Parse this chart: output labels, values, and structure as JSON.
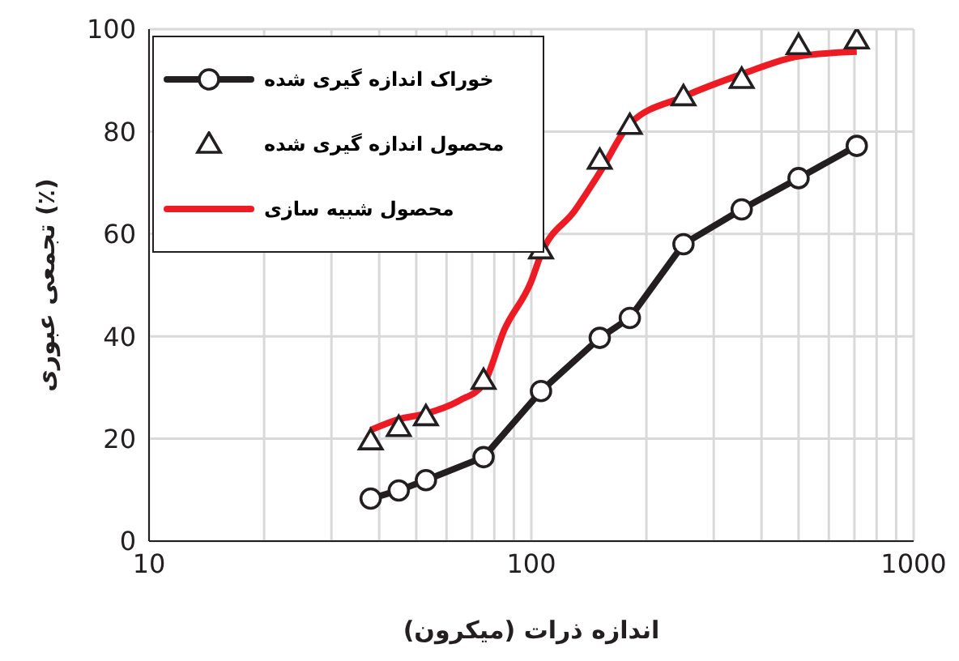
{
  "chart_data": {
    "type": "line",
    "xlabel": "اندازه ذرات (میکرون)",
    "ylabel": "تجمعی عبوری (٪)",
    "log": "x",
    "grid": true,
    "legend": "top left",
    "xlim": [
      10,
      1000
    ],
    "xticks": [
      10,
      {
        "value": 20,
        "label": null
      },
      {
        "value": 30,
        "label": null
      },
      {
        "value": 40,
        "label": null
      },
      {
        "value": 50,
        "label": null
      },
      {
        "value": 60,
        "label": null
      },
      {
        "value": 70,
        "label": null
      },
      {
        "value": 80,
        "label": null
      },
      {
        "value": 90,
        "label": null
      },
      100,
      {
        "value": 200,
        "label": null
      },
      {
        "value": 300,
        "label": null
      },
      {
        "value": 400,
        "label": null
      },
      {
        "value": 500,
        "label": null
      },
      {
        "value": 600,
        "label": null
      },
      {
        "value": 700,
        "label": null
      },
      {
        "value": 800,
        "label": null
      },
      {
        "value": 900,
        "label": null
      },
      1000
    ],
    "ylim": [
      0,
      100
    ],
    "yticks": [
      0,
      20,
      40,
      60,
      80,
      100
    ],
    "series": [
      {
        "name": "خوراک اندازه گیری شده",
        "color": "#231f20",
        "marker": "circle",
        "x": [
          38,
          45,
          53,
          75,
          106,
          151,
          181,
          250,
          355,
          500,
          710
        ],
        "values": [
          8.3,
          9.9,
          11.9,
          16.4,
          29.3,
          39.7,
          43.6,
          58,
          64.8,
          70.9,
          77.2
        ]
      },
      {
        "name": "محصول اندازه گیری شده",
        "type": "scatter",
        "color": "#231f20",
        "marker": "triangle",
        "x": [
          38,
          45,
          53,
          75,
          106,
          151,
          181,
          250,
          355,
          500,
          710
        ],
        "values": [
          19.6,
          22.2,
          24.3,
          31.4,
          56.9,
          74.4,
          81.2,
          86.8,
          90.2,
          96.8,
          97.9
        ]
      },
      {
        "name": "محصول شبیه سازی",
        "type": "line",
        "color": "#ed1c24",
        "marker": "none",
        "x": [
          38,
          45,
          53,
          65,
          75,
          85,
          100,
          106,
          130,
          151,
          181,
          250,
          355,
          500,
          710
        ],
        "values": [
          21.7,
          23.8,
          24.9,
          27.5,
          30.7,
          41.3,
          50.8,
          56,
          64.6,
          72,
          81.5,
          86.8,
          91.2,
          94.7,
          95.6
        ]
      }
    ]
  }
}
